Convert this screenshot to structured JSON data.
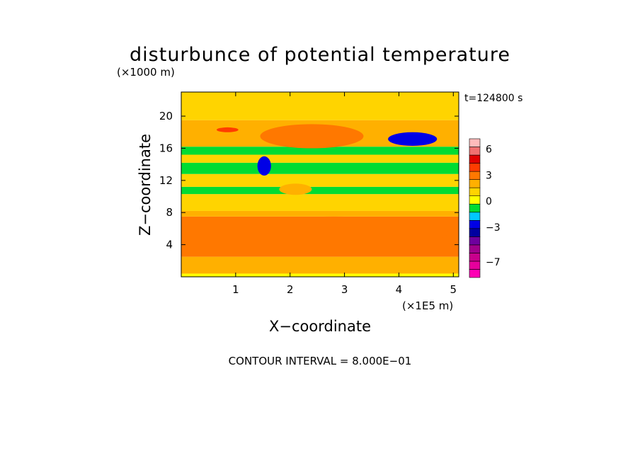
{
  "chart_data": {
    "type": "heatmap",
    "title": "disturbunce of potential temperature",
    "y_unit": "(×1000 m)",
    "x_unit": "(×1E5 m)",
    "time_label": "t=124800 s",
    "xlabel": "X−coordinate",
    "ylabel": "Z−coordinate",
    "footer": "CONTOUR INTERVAL = 8.000E−01",
    "xlim": [
      0,
      5.1
    ],
    "ylim": [
      0,
      23
    ],
    "x_ticks": [
      1,
      2,
      3,
      4,
      5
    ],
    "x_tick_labels": [
      "1",
      "2",
      "3",
      "4",
      "5"
    ],
    "y_ticks": [
      4,
      8,
      12,
      16,
      20
    ],
    "y_tick_labels": [
      "4",
      "8",
      "12",
      "16",
      "20"
    ],
    "colorbar": {
      "levels_from_bottom": [
        -8.8,
        -8.0,
        -7.2,
        -6.4,
        -5.6,
        -4.8,
        -4.0,
        -3.2,
        -2.4,
        -1.6,
        -0.8,
        0.0,
        0.8,
        1.6,
        2.4,
        3.2,
        4.0,
        4.8,
        5.6,
        6.4,
        7.2
      ],
      "colors_from_bottom": [
        "#ff00b4",
        "#e6009c",
        "#c8008c",
        "#a0008c",
        "#6e009e",
        "#0000a0",
        "#0000e6",
        "#00c8ff",
        "#00dc32",
        "#ffff00",
        "#ffd400",
        "#ffb000",
        "#ff7800",
        "#ff3c00",
        "#e00000",
        "#f07070",
        "#ffbcbc"
      ],
      "tick_values": [
        6,
        3,
        0,
        -3,
        -7
      ],
      "tick_labels": [
        "6",
        "3",
        "0",
        "−3",
        "−7"
      ]
    },
    "bands": [
      {
        "z": [
          0.0,
          0.4
        ],
        "value": -1.5
      },
      {
        "z": [
          0.4,
          2.5
        ],
        "value": 0.3
      },
      {
        "z": [
          2.5,
          7.5
        ],
        "value": 1.0
      },
      {
        "z": [
          7.5,
          8.2
        ],
        "value": 0.3
      },
      {
        "z": [
          8.2,
          10.3
        ],
        "value": -0.6
      },
      {
        "z": [
          10.3,
          11.2
        ],
        "value": -1.8
      },
      {
        "z": [
          11.2,
          12.8
        ],
        "value": -0.6
      },
      {
        "z": [
          12.8,
          14.2
        ],
        "value": -1.8
      },
      {
        "z": [
          14.2,
          15.2
        ],
        "value": -0.6
      },
      {
        "z": [
          15.2,
          16.2
        ],
        "value": -1.8
      },
      {
        "z": [
          16.2,
          19.5
        ],
        "value": 0.3
      },
      {
        "z": [
          19.5,
          23.0
        ],
        "value": -0.6
      }
    ],
    "features": [
      {
        "x": [
          0.7,
          4.9
        ],
        "z": [
          3.5,
          7.5
        ],
        "value": 1.0,
        "name": "lower warm layer"
      },
      {
        "x": [
          1.45,
          3.35
        ],
        "z": [
          16.0,
          19.0
        ],
        "value": 1.0,
        "name": "upper warm patch"
      },
      {
        "x": [
          0.65,
          1.05
        ],
        "z": [
          18.0,
          18.6
        ],
        "value": 2.0,
        "name": "warm streak left"
      },
      {
        "x": [
          3.8,
          4.7
        ],
        "z": [
          16.3,
          18.0
        ],
        "value": -3.6,
        "name": "cold anomaly right"
      },
      {
        "x": [
          1.4,
          1.65
        ],
        "z": [
          12.6,
          15.0
        ],
        "value": -3.6,
        "name": "cold anomaly left"
      },
      {
        "x": [
          1.8,
          2.4
        ],
        "z": [
          10.2,
          11.6
        ],
        "value": 0.3,
        "name": "mid-level warm patch"
      }
    ]
  }
}
